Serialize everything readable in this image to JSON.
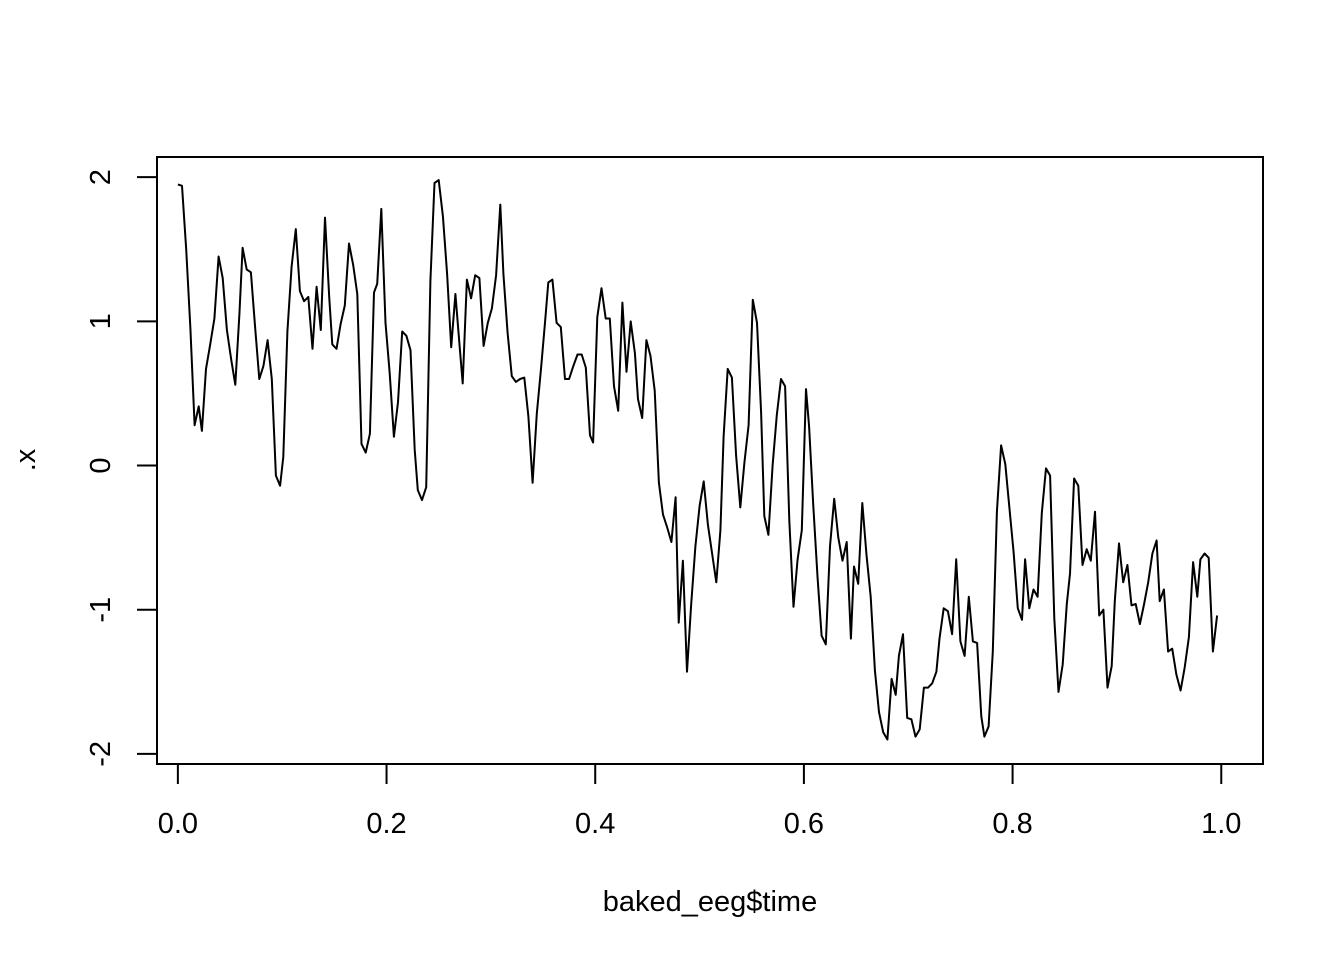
{
  "chart_data": {
    "type": "line",
    "title": "",
    "xlabel": "baked_eeg$time",
    "ylabel": ".x",
    "xlim": [
      -0.02,
      1.04
    ],
    "ylim": [
      -2.07,
      2.14
    ],
    "xticks": [
      0.0,
      0.2,
      0.4,
      0.6,
      0.8,
      1.0
    ],
    "xtick_labels": [
      "0.0",
      "0.2",
      "0.4",
      "0.6",
      "0.8",
      "1.0"
    ],
    "yticks": [
      -2,
      -1,
      0,
      1,
      2
    ],
    "ytick_labels": [
      "-2",
      "-1",
      "0",
      "1",
      "2"
    ],
    "grid": false,
    "line_color": "#000000",
    "series": [
      {
        "x": [
          0.0,
          0.004,
          0.008,
          0.012,
          0.016,
          0.02,
          0.023,
          0.027,
          0.031,
          0.035,
          0.039,
          0.043,
          0.047,
          0.051,
          0.055,
          0.059,
          0.062,
          0.066,
          0.07,
          0.074,
          0.078,
          0.082,
          0.086,
          0.09,
          0.094,
          0.098,
          0.101,
          0.105,
          0.109,
          0.113,
          0.117,
          0.121,
          0.125,
          0.129,
          0.133,
          0.137,
          0.141,
          0.145,
          0.148,
          0.152,
          0.156,
          0.16,
          0.164,
          0.168,
          0.172,
          0.176,
          0.18,
          0.184,
          0.188,
          0.191,
          0.195,
          0.199,
          0.203,
          0.207,
          0.211,
          0.215,
          0.219,
          0.223,
          0.227,
          0.23,
          0.234,
          0.238,
          0.242,
          0.246,
          0.25,
          0.254,
          0.258,
          0.262,
          0.266,
          0.27,
          0.273,
          0.277,
          0.281,
          0.285,
          0.289,
          0.293,
          0.297,
          0.301,
          0.305,
          0.309,
          0.312,
          0.316,
          0.32,
          0.324,
          0.328,
          0.332,
          0.336,
          0.34,
          0.344,
          0.348,
          0.352,
          0.355,
          0.359,
          0.363,
          0.367,
          0.371,
          0.375,
          0.379,
          0.383,
          0.387,
          0.391,
          0.395,
          0.398,
          0.402,
          0.406,
          0.41,
          0.414,
          0.418,
          0.422,
          0.426,
          0.43,
          0.434,
          0.438,
          0.441,
          0.445,
          0.449,
          0.453,
          0.457,
          0.461,
          0.465,
          0.469,
          0.473,
          0.477,
          0.48,
          0.484,
          0.488,
          0.492,
          0.496,
          0.5,
          0.504,
          0.508,
          0.512,
          0.516,
          0.52,
          0.523,
          0.527,
          0.531,
          0.535,
          0.539,
          0.543,
          0.547,
          0.551,
          0.555,
          0.559,
          0.562,
          0.566,
          0.57,
          0.574,
          0.578,
          0.582,
          0.586,
          0.59,
          0.594,
          0.598,
          0.602,
          0.605,
          0.609,
          0.613,
          0.617,
          0.621,
          0.625,
          0.629,
          0.633,
          0.637,
          0.641,
          0.645,
          0.648,
          0.652,
          0.656,
          0.66,
          0.664,
          0.668,
          0.672,
          0.676,
          0.68,
          0.684,
          0.688,
          0.691,
          0.695,
          0.699,
          0.703,
          0.707,
          0.711,
          0.715,
          0.719,
          0.723,
          0.727,
          0.73,
          0.734,
          0.738,
          0.742,
          0.746,
          0.75,
          0.754,
          0.758,
          0.762,
          0.766,
          0.77,
          0.773,
          0.777,
          0.781,
          0.785,
          0.789,
          0.793,
          0.797,
          0.801,
          0.805,
          0.809,
          0.812,
          0.816,
          0.82,
          0.824,
          0.828,
          0.832,
          0.836,
          0.84,
          0.844,
          0.848,
          0.852,
          0.855,
          0.859,
          0.863,
          0.867,
          0.871,
          0.875,
          0.879,
          0.883,
          0.887,
          0.891,
          0.895,
          0.898,
          0.902,
          0.906,
          0.91,
          0.914,
          0.918,
          0.922,
          0.926,
          0.93,
          0.934,
          0.938,
          0.941,
          0.945,
          0.949,
          0.953,
          0.957,
          0.961,
          0.965,
          0.969,
          0.973,
          0.977,
          0.98,
          0.984,
          0.988,
          0.992,
          0.996
        ],
        "y": [
          1.95,
          1.94,
          1.5,
          0.95,
          0.28,
          0.41,
          0.24,
          0.67,
          0.84,
          1.02,
          1.45,
          1.3,
          0.94,
          0.74,
          0.56,
          1.05,
          1.51,
          1.36,
          1.34,
          0.96,
          0.6,
          0.69,
          0.87,
          0.6,
          -0.07,
          -0.14,
          0.06,
          0.93,
          1.38,
          1.64,
          1.21,
          1.14,
          1.17,
          0.81,
          1.24,
          0.94,
          1.72,
          1.17,
          0.84,
          0.81,
          0.98,
          1.11,
          1.54,
          1.39,
          1.19,
          0.15,
          0.09,
          0.22,
          1.2,
          1.26,
          1.78,
          0.99,
          0.64,
          0.2,
          0.44,
          0.93,
          0.9,
          0.8,
          0.11,
          -0.17,
          -0.24,
          -0.15,
          1.28,
          1.96,
          1.98,
          1.73,
          1.33,
          0.82,
          1.19,
          0.83,
          0.57,
          1.29,
          1.16,
          1.32,
          1.3,
          0.83,
          0.99,
          1.09,
          1.32,
          1.81,
          1.33,
          0.92,
          0.62,
          0.58,
          0.6,
          0.61,
          0.34,
          -0.12,
          0.36,
          0.67,
          1.0,
          1.27,
          1.29,
          0.99,
          0.96,
          0.6,
          0.6,
          0.69,
          0.77,
          0.77,
          0.68,
          0.21,
          0.16,
          1.03,
          1.23,
          1.02,
          1.02,
          0.55,
          0.38,
          1.13,
          0.65,
          1.0,
          0.78,
          0.46,
          0.33,
          0.87,
          0.76,
          0.52,
          -0.12,
          -0.34,
          -0.43,
          -0.53,
          -0.22,
          -1.09,
          -0.66,
          -1.43,
          -0.96,
          -0.56,
          -0.28,
          -0.11,
          -0.41,
          -0.61,
          -0.81,
          -0.45,
          0.2,
          0.67,
          0.61,
          0.07,
          -0.29,
          0.02,
          0.28,
          1.15,
          0.99,
          0.37,
          -0.35,
          -0.48,
          0.0,
          0.35,
          0.6,
          0.55,
          -0.38,
          -0.98,
          -0.65,
          -0.45,
          0.53,
          0.27,
          -0.28,
          -0.77,
          -1.18,
          -1.24,
          -0.56,
          -0.23,
          -0.5,
          -0.66,
          -0.53,
          -1.2,
          -0.7,
          -0.82,
          -0.26,
          -0.62,
          -0.91,
          -1.42,
          -1.71,
          -1.85,
          -1.9,
          -1.48,
          -1.59,
          -1.32,
          -1.17,
          -1.75,
          -1.76,
          -1.88,
          -1.83,
          -1.54,
          -1.54,
          -1.51,
          -1.43,
          -1.2,
          -0.99,
          -1.01,
          -1.17,
          -0.65,
          -1.22,
          -1.32,
          -0.91,
          -1.22,
          -1.23,
          -1.74,
          -1.88,
          -1.81,
          -1.29,
          -0.32,
          0.14,
          0.01,
          -0.3,
          -0.6,
          -0.99,
          -1.07,
          -0.65,
          -0.99,
          -0.86,
          -0.91,
          -0.33,
          -0.02,
          -0.07,
          -1.06,
          -1.57,
          -1.38,
          -0.96,
          -0.75,
          -0.09,
          -0.14,
          -0.69,
          -0.58,
          -0.66,
          -0.32,
          -1.04,
          -1.0,
          -1.54,
          -1.39,
          -0.94,
          -0.54,
          -0.81,
          -0.69,
          -0.97,
          -0.96,
          -1.1,
          -0.96,
          -0.81,
          -0.61,
          -0.52,
          -0.94,
          -0.86,
          -1.29,
          -1.27,
          -1.45,
          -1.56,
          -1.4,
          -1.19,
          -0.67,
          -0.91,
          -0.65,
          -0.61,
          -0.64,
          -1.29,
          -1.04
        ]
      }
    ]
  }
}
